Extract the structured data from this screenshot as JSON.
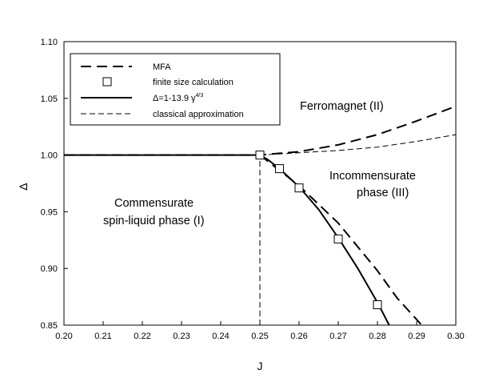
{
  "chart_data": {
    "type": "line",
    "xlabel": "J",
    "ylabel": "Δ",
    "xlim": [
      0.2,
      0.3
    ],
    "ylim": [
      0.85,
      1.1
    ],
    "xticks": [
      "0.20",
      "0.21",
      "0.22",
      "0.23",
      "0.24",
      "0.25",
      "0.26",
      "0.27",
      "0.28",
      "0.29",
      "0.30"
    ],
    "yticks": [
      "0.85",
      "0.90",
      "0.95",
      "1.00",
      "1.05",
      "1.10"
    ],
    "grid": false,
    "legend_position": "top-left",
    "legend": {
      "mfa": "MFA",
      "finite": "finite size calculation",
      "formula_main": "Δ=1-13.9 γ",
      "formula_exp": "4/3",
      "classical": "classical approximation"
    },
    "regions": {
      "ferro": "Ferromagnet (II)",
      "incomm_1": "Incommensurate",
      "incomm_2": "phase (III)",
      "comm_1": "Commensurate",
      "comm_2": "spin-liquid phase (I)"
    },
    "series": [
      {
        "key": "mfa",
        "style": "long-dash",
        "x": [
          0.2,
          0.25,
          0.26,
          0.27,
          0.28,
          0.29,
          0.3
        ],
        "y": [
          1.0,
          1.0,
          1.003,
          1.009,
          1.018,
          1.03,
          1.043
        ]
      },
      {
        "key": "classical",
        "style": "short-dash",
        "x": [
          0.25,
          0.26,
          0.27,
          0.28,
          0.29,
          0.3
        ],
        "y": [
          1.0,
          1.002,
          1.004,
          1.007,
          1.012,
          1.018
        ]
      },
      {
        "key": "formula",
        "style": "solid",
        "x": [
          0.2,
          0.25,
          0.252,
          0.255,
          0.26,
          0.265,
          0.27,
          0.275,
          0.28,
          0.283
        ],
        "y": [
          1.0,
          1.0,
          0.996,
          0.988,
          0.972,
          0.952,
          0.927,
          0.9,
          0.87,
          0.85
        ]
      },
      {
        "key": "mfa_lower",
        "style": "long-dash",
        "x": [
          0.25,
          0.26,
          0.27,
          0.28,
          0.285,
          0.2913
        ],
        "y": [
          1.0,
          0.973,
          0.94,
          0.898,
          0.874,
          0.85
        ]
      },
      {
        "key": "finite",
        "style": "square-markers",
        "x": [
          0.25,
          0.255,
          0.26,
          0.27,
          0.28
        ],
        "y": [
          1.0,
          0.988,
          0.971,
          0.926,
          0.868
        ]
      }
    ],
    "vertical_line": {
      "style": "short-dash",
      "x": 0.25,
      "y_from": 0.85,
      "y_to": 1.0
    }
  }
}
